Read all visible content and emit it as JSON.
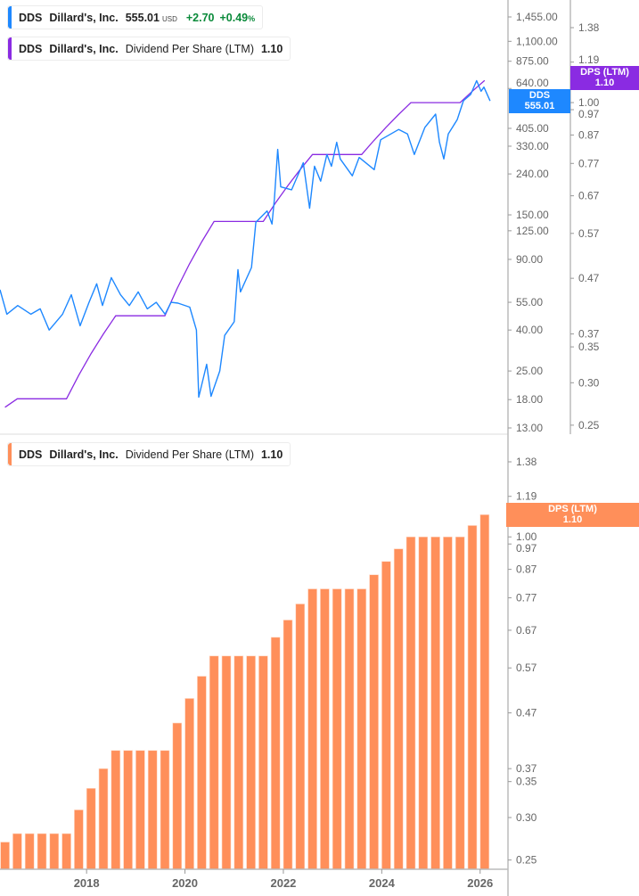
{
  "colors": {
    "price": "#1e88ff",
    "dps_line": "#8a2be2",
    "dps_bar": "#ff8f5a",
    "up": "#0a8a3a"
  },
  "legend_price": {
    "symbol": "DDS",
    "name": "Dillard's, Inc.",
    "price": "555.01",
    "currency": "USD",
    "change": "+2.70",
    "change_pct": "+0.49",
    "pct_sign": "%"
  },
  "legend_dps_top": {
    "symbol": "DDS",
    "name": "Dillard's, Inc.",
    "metric": "Dividend Per Share (LTM)",
    "value": "1.10"
  },
  "legend_dps_bottom": {
    "symbol": "DDS",
    "name": "Dillard's, Inc.",
    "metric": "Dividend Per Share (LTM)",
    "value": "1.10"
  },
  "tags": {
    "price_label": "DDS",
    "price_value": "555.01",
    "dps_label": "DPS (LTM)",
    "dps_value": "1.10",
    "dps_bottom_label": "DPS (LTM)",
    "dps_bottom_value": "1.10"
  },
  "chart_data": [
    {
      "type": "line",
      "scale": "log",
      "price_axis_ticks": [
        "1,455.00",
        "1,100.00",
        "875.00",
        "640.00",
        "405.00",
        "330.00",
        "240.00",
        "150.00",
        "125.00",
        "90.00",
        "55.00",
        "40.00",
        "25.00",
        "18.00",
        "13.00"
      ],
      "dps_axis_ticks": [
        "1.38",
        "1.19",
        "1.00",
        "0.97",
        "0.87",
        "0.77",
        "0.67",
        "0.57",
        "0.47",
        "0.37",
        "0.35",
        "0.30",
        "0.25"
      ],
      "price_series": [
        [
          "2016-03-28",
          63.5
        ],
        [
          "2016-05-18",
          48
        ],
        [
          "2016-08-07",
          53
        ],
        [
          "2016-11-14",
          48
        ],
        [
          "2017-01-22",
          51
        ],
        [
          "2017-03-28",
          40
        ],
        [
          "2017-07-05",
          48
        ],
        [
          "2017-09-09",
          60
        ],
        [
          "2017-11-14",
          42
        ],
        [
          "2018-01-19",
          55
        ],
        [
          "2018-03-15",
          68
        ],
        [
          "2018-04-28",
          53
        ],
        [
          "2018-07-02",
          73
        ],
        [
          "2018-09-09",
          60
        ],
        [
          "2018-11-14",
          53
        ],
        [
          "2019-01-19",
          62
        ],
        [
          "2019-03-26",
          51
        ],
        [
          "2019-05-31",
          55
        ],
        [
          "2019-08-05",
          48
        ],
        [
          "2019-09-20",
          55
        ],
        [
          "2019-11-10",
          54.5
        ],
        [
          "2020-02-06",
          52
        ],
        [
          "2020-03-25",
          40
        ],
        [
          "2020-04-12",
          18.5
        ],
        [
          "2020-06-10",
          27
        ],
        [
          "2020-07-12",
          18.7
        ],
        [
          "2020-09-16",
          25
        ],
        [
          "2020-10-22",
          37.6
        ],
        [
          "2021-01-01",
          44
        ],
        [
          "2021-01-29",
          80
        ],
        [
          "2021-02-17",
          62
        ],
        [
          "2021-05-08",
          82
        ],
        [
          "2021-06-10",
          138
        ],
        [
          "2021-09-02",
          157
        ],
        [
          "2021-10-08",
          135
        ],
        [
          "2021-10-26",
          180
        ],
        [
          "2021-11-20",
          318
        ],
        [
          "2021-12-12",
          207
        ],
        [
          "2022-03-01",
          200
        ],
        [
          "2022-05-27",
          273
        ],
        [
          "2022-07-13",
          162
        ],
        [
          "2022-08-19",
          262
        ],
        [
          "2022-10-04",
          221
        ],
        [
          "2022-11-20",
          300
        ],
        [
          "2022-12-23",
          262
        ],
        [
          "2023-02-01",
          345
        ],
        [
          "2023-02-28",
          285
        ],
        [
          "2023-05-26",
          235
        ],
        [
          "2023-07-16",
          290
        ],
        [
          "2023-11-06",
          252
        ],
        [
          "2023-12-23",
          355
        ],
        [
          "2024-05-05",
          400
        ],
        [
          "2024-07-09",
          380
        ],
        [
          "2024-08-30",
          300
        ],
        [
          "2024-11-17",
          410
        ],
        [
          "2025-02-05",
          477
        ],
        [
          "2025-03-03",
          345
        ],
        [
          "2025-04-05",
          285
        ],
        [
          "2025-05-08",
          380
        ],
        [
          "2025-07-13",
          447
        ],
        [
          "2025-08-29",
          556
        ],
        [
          "2025-10-22",
          597
        ],
        [
          "2025-12-05",
          700
        ],
        [
          "2026-01-08",
          620
        ],
        [
          "2026-01-29",
          650
        ],
        [
          "2026-03-14",
          555.01
        ]
      ]
    },
    {
      "type": "bar",
      "scale": "log",
      "y_axis_ticks": [
        "1.38",
        "1.19",
        "1.00",
        "0.97",
        "0.87",
        "0.77",
        "0.67",
        "0.57",
        "0.47",
        "0.37",
        "0.35",
        "0.30",
        "0.25"
      ],
      "x_axis_ticks": [
        "2018",
        "2020",
        "2022",
        "2024",
        "2026"
      ],
      "categories": [
        "2016-Q2",
        "2016-Q3",
        "2016-Q4",
        "2017-Q1",
        "2017-Q2",
        "2017-Q3",
        "2017-Q4",
        "2018-Q1",
        "2018-Q2",
        "2018-Q3",
        "2018-Q4",
        "2019-Q1",
        "2019-Q2",
        "2019-Q3",
        "2019-Q4",
        "2020-Q1",
        "2020-Q2",
        "2020-Q3",
        "2020-Q4",
        "2021-Q1",
        "2021-Q2",
        "2021-Q3",
        "2021-Q4",
        "2022-Q1",
        "2022-Q2",
        "2022-Q3",
        "2022-Q4",
        "2023-Q1",
        "2023-Q2",
        "2023-Q3",
        "2023-Q4",
        "2024-Q1",
        "2024-Q2",
        "2024-Q3",
        "2024-Q4",
        "2025-Q1",
        "2025-Q2",
        "2025-Q3",
        "2025-Q4",
        "2026-Q1"
      ],
      "values": [
        0.27,
        0.28,
        0.28,
        0.28,
        0.28,
        0.28,
        0.31,
        0.34,
        0.37,
        0.4,
        0.4,
        0.4,
        0.4,
        0.4,
        0.45,
        0.5,
        0.55,
        0.6,
        0.6,
        0.6,
        0.6,
        0.6,
        0.65,
        0.7,
        0.75,
        0.8,
        0.8,
        0.8,
        0.8,
        0.8,
        0.85,
        0.9,
        0.95,
        1.0,
        1.0,
        1.0,
        1.0,
        1.0,
        1.05,
        1.1
      ]
    }
  ]
}
